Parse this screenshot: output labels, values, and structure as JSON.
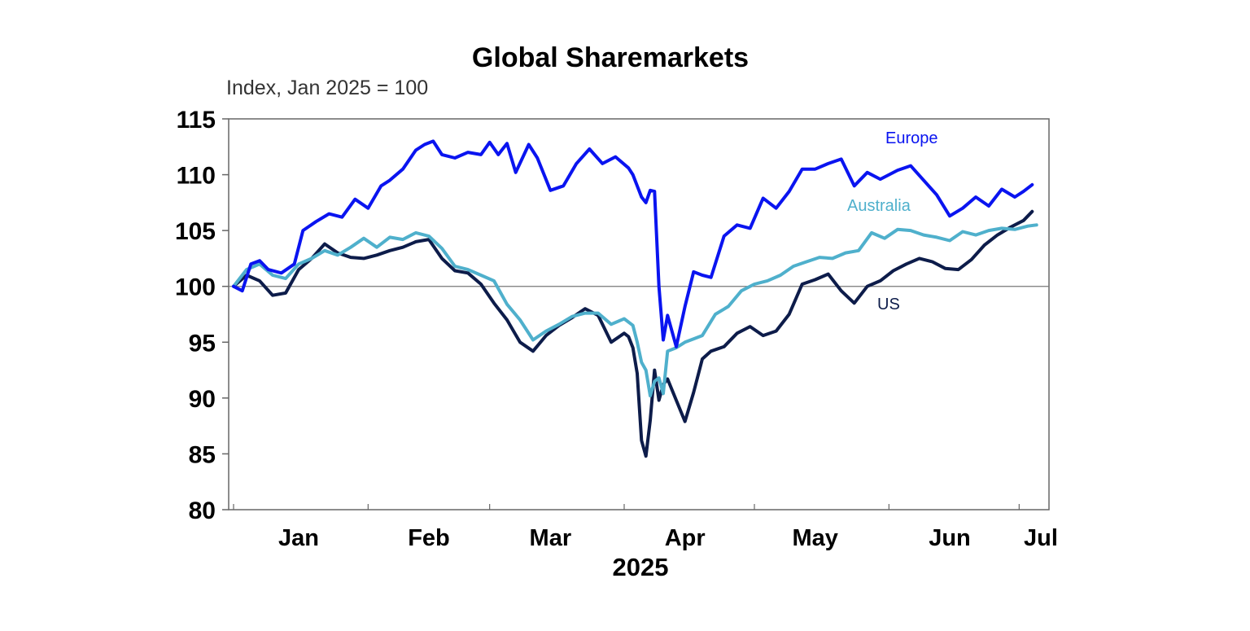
{
  "chart_data": {
    "type": "line",
    "title": "Global Sharemarkets",
    "subtitle": "Index, Jan 2025 = 100",
    "xlabel": "2025",
    "ylabel": "",
    "ylim": [
      80,
      115
    ],
    "yticks": [
      80,
      85,
      90,
      95,
      100,
      105,
      110,
      115
    ],
    "reference_line": 100,
    "xlim": [
      "2025-01-01",
      "2025-07-06"
    ],
    "xticks": [
      {
        "label": "Jan",
        "date": "2025-01-16"
      },
      {
        "label": "Feb",
        "date": "2025-02-15"
      },
      {
        "label": "Mar",
        "date": "2025-03-15"
      },
      {
        "label": "Apr",
        "date": "2025-04-15"
      },
      {
        "label": "May",
        "date": "2025-05-15"
      },
      {
        "label": "Jun",
        "date": "2025-06-15"
      },
      {
        "label": "Jul",
        "date": "2025-07-06"
      }
    ],
    "grid": false,
    "legend": "inline labels",
    "series": [
      {
        "name": "Europe",
        "color": "#0a14f0",
        "x": [
          "2025-01-01",
          "2025-01-03",
          "2025-01-05",
          "2025-01-07",
          "2025-01-09",
          "2025-01-12",
          "2025-01-15",
          "2025-01-17",
          "2025-01-20",
          "2025-01-23",
          "2025-01-26",
          "2025-01-29",
          "2025-02-01",
          "2025-02-04",
          "2025-02-06",
          "2025-02-09",
          "2025-02-12",
          "2025-02-14",
          "2025-02-16",
          "2025-02-18",
          "2025-02-21",
          "2025-02-24",
          "2025-02-27",
          "2025-03-01",
          "2025-03-03",
          "2025-03-05",
          "2025-03-07",
          "2025-03-10",
          "2025-03-12",
          "2025-03-15",
          "2025-03-18",
          "2025-03-21",
          "2025-03-24",
          "2025-03-27",
          "2025-03-30",
          "2025-04-02",
          "2025-04-03",
          "2025-04-04",
          "2025-04-05",
          "2025-04-06",
          "2025-04-07",
          "2025-04-08",
          "2025-04-09",
          "2025-04-10",
          "2025-04-11",
          "2025-04-13",
          "2025-04-15",
          "2025-04-17",
          "2025-04-19",
          "2025-04-21",
          "2025-04-24",
          "2025-04-27",
          "2025-04-30",
          "2025-05-03",
          "2025-05-06",
          "2025-05-09",
          "2025-05-12",
          "2025-05-15",
          "2025-05-18",
          "2025-05-21",
          "2025-05-24",
          "2025-05-27",
          "2025-05-30",
          "2025-06-03",
          "2025-06-06",
          "2025-06-09",
          "2025-06-12",
          "2025-06-15",
          "2025-06-18",
          "2025-06-21",
          "2025-06-24",
          "2025-06-27",
          "2025-06-30",
          "2025-07-02",
          "2025-07-04"
        ],
        "values": [
          100.0,
          99.6,
          102.0,
          102.3,
          101.5,
          101.2,
          102.0,
          105.0,
          105.8,
          106.5,
          106.2,
          107.8,
          107.0,
          109.0,
          109.5,
          110.5,
          112.2,
          112.7,
          113.0,
          111.8,
          111.5,
          112.0,
          111.8,
          112.9,
          111.8,
          112.8,
          110.2,
          112.7,
          111.5,
          108.6,
          109.0,
          111.0,
          112.3,
          111.0,
          111.6,
          110.6,
          110.0,
          109.0,
          108.0,
          107.5,
          108.6,
          108.5,
          100.0,
          95.2,
          97.4,
          94.6,
          98.2,
          101.3,
          101.0,
          100.8,
          104.5,
          105.5,
          105.2,
          107.9,
          107.0,
          108.5,
          110.5,
          110.5,
          111.0,
          111.4,
          109.0,
          110.2,
          109.6,
          110.4,
          110.8,
          109.5,
          108.2,
          106.3,
          107.0,
          108.0,
          107.2,
          108.7,
          108.0,
          108.5,
          109.1
        ]
      },
      {
        "name": "Australia",
        "color": "#4fb0cc",
        "x": [
          "2025-01-01",
          "2025-01-04",
          "2025-01-07",
          "2025-01-10",
          "2025-01-13",
          "2025-01-16",
          "2025-01-19",
          "2025-01-22",
          "2025-01-25",
          "2025-01-28",
          "2025-01-31",
          "2025-02-03",
          "2025-02-06",
          "2025-02-09",
          "2025-02-12",
          "2025-02-15",
          "2025-02-18",
          "2025-02-21",
          "2025-02-24",
          "2025-02-27",
          "2025-03-02",
          "2025-03-05",
          "2025-03-08",
          "2025-03-11",
          "2025-03-14",
          "2025-03-17",
          "2025-03-20",
          "2025-03-23",
          "2025-03-26",
          "2025-03-29",
          "2025-04-01",
          "2025-04-03",
          "2025-04-04",
          "2025-04-05",
          "2025-04-06",
          "2025-04-07",
          "2025-04-08",
          "2025-04-09",
          "2025-04-10",
          "2025-04-11",
          "2025-04-13",
          "2025-04-15",
          "2025-04-17",
          "2025-04-19",
          "2025-04-22",
          "2025-04-25",
          "2025-04-28",
          "2025-05-01",
          "2025-05-04",
          "2025-05-07",
          "2025-05-10",
          "2025-05-13",
          "2025-05-16",
          "2025-05-19",
          "2025-05-22",
          "2025-05-25",
          "2025-05-28",
          "2025-05-31",
          "2025-06-03",
          "2025-06-06",
          "2025-06-09",
          "2025-06-12",
          "2025-06-15",
          "2025-06-18",
          "2025-06-21",
          "2025-06-24",
          "2025-06-27",
          "2025-06-30",
          "2025-07-03",
          "2025-07-05"
        ],
        "values": [
          100.0,
          101.5,
          102.0,
          101.0,
          100.7,
          102.0,
          102.5,
          103.2,
          102.8,
          103.5,
          104.3,
          103.5,
          104.4,
          104.2,
          104.8,
          104.5,
          103.4,
          101.8,
          101.5,
          101.0,
          100.5,
          98.4,
          97.0,
          95.2,
          96.0,
          96.6,
          97.3,
          97.6,
          97.6,
          96.6,
          97.1,
          96.5,
          95.0,
          93.2,
          92.5,
          90.2,
          91.5,
          91.8,
          90.4,
          94.2,
          94.5,
          95.0,
          95.3,
          95.6,
          97.5,
          98.2,
          99.6,
          100.2,
          100.5,
          101.0,
          101.8,
          102.2,
          102.6,
          102.5,
          103.0,
          103.2,
          104.8,
          104.3,
          105.1,
          105.0,
          104.6,
          104.4,
          104.1,
          104.9,
          104.6,
          105.0,
          105.2,
          105.1,
          105.4,
          105.5
        ]
      },
      {
        "name": "US",
        "color": "#0d1c4a",
        "x": [
          "2025-01-01",
          "2025-01-04",
          "2025-01-07",
          "2025-01-10",
          "2025-01-13",
          "2025-01-16",
          "2025-01-19",
          "2025-01-22",
          "2025-01-25",
          "2025-01-28",
          "2025-01-31",
          "2025-02-03",
          "2025-02-06",
          "2025-02-09",
          "2025-02-12",
          "2025-02-15",
          "2025-02-18",
          "2025-02-21",
          "2025-02-24",
          "2025-02-27",
          "2025-03-02",
          "2025-03-05",
          "2025-03-08",
          "2025-03-11",
          "2025-03-14",
          "2025-03-17",
          "2025-03-20",
          "2025-03-23",
          "2025-03-26",
          "2025-03-29",
          "2025-04-01",
          "2025-04-02",
          "2025-04-03",
          "2025-04-04",
          "2025-04-05",
          "2025-04-06",
          "2025-04-07",
          "2025-04-08",
          "2025-04-09",
          "2025-04-10",
          "2025-04-11",
          "2025-04-13",
          "2025-04-15",
          "2025-04-17",
          "2025-04-19",
          "2025-04-21",
          "2025-04-24",
          "2025-04-27",
          "2025-04-30",
          "2025-05-03",
          "2025-05-06",
          "2025-05-09",
          "2025-05-12",
          "2025-05-15",
          "2025-05-18",
          "2025-05-21",
          "2025-05-24",
          "2025-05-27",
          "2025-05-30",
          "2025-06-02",
          "2025-06-05",
          "2025-06-08",
          "2025-06-11",
          "2025-06-14",
          "2025-06-17",
          "2025-06-20",
          "2025-06-23",
          "2025-06-26",
          "2025-06-29",
          "2025-07-02",
          "2025-07-04"
        ],
        "values": [
          100.0,
          101.0,
          100.5,
          99.2,
          99.4,
          101.5,
          102.5,
          103.8,
          103.0,
          102.6,
          102.5,
          102.8,
          103.2,
          103.5,
          104.0,
          104.2,
          102.5,
          101.4,
          101.2,
          100.2,
          98.5,
          97.0,
          95.0,
          94.2,
          95.6,
          96.5,
          97.2,
          98.0,
          97.4,
          95.0,
          95.8,
          95.5,
          94.5,
          92.2,
          86.2,
          84.8,
          88.0,
          92.5,
          89.8,
          91.2,
          91.7,
          89.8,
          87.9,
          90.5,
          93.5,
          94.2,
          94.6,
          95.8,
          96.4,
          95.6,
          96.0,
          97.5,
          100.2,
          100.6,
          101.1,
          99.6,
          98.5,
          100.0,
          100.5,
          101.4,
          102.0,
          102.5,
          102.2,
          101.6,
          101.5,
          102.4,
          103.7,
          104.6,
          105.3,
          105.9,
          106.7
        ]
      }
    ]
  },
  "labels": {
    "europe": "Europe",
    "australia": "Australia",
    "us": "US"
  }
}
